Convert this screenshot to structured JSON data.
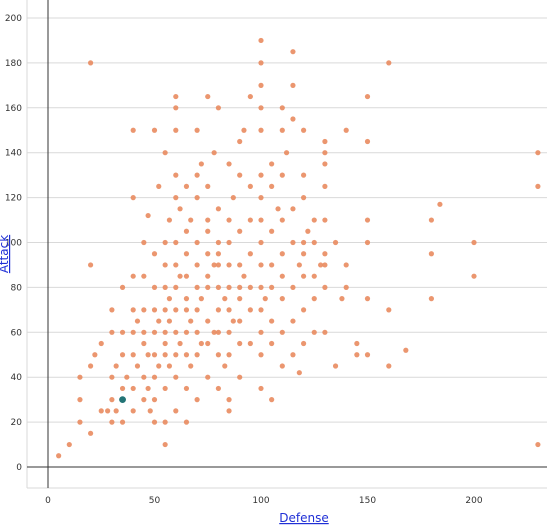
{
  "chart_data": {
    "type": "scatter",
    "title": "",
    "xlabel": "Defense",
    "ylabel": "Attack",
    "xlim": [
      -10,
      233
    ],
    "ylim": [
      -10,
      205
    ],
    "xticks": [
      0,
      50,
      100,
      150,
      200
    ],
    "yticks": [
      0,
      20,
      40,
      60,
      80,
      100,
      120,
      140,
      160,
      180,
      200
    ],
    "grid": "horizontal",
    "legend": "none",
    "colors": {
      "point": "#e98b5f",
      "highlight": "#237476",
      "axis_title": "#1f2fd6"
    },
    "highlight": {
      "x": 35,
      "y": 30
    },
    "series": [
      {
        "points": [
          [
            5,
            5
          ],
          [
            10,
            10
          ],
          [
            15,
            20
          ],
          [
            15,
            30
          ],
          [
            15,
            40
          ],
          [
            20,
            15
          ],
          [
            20,
            45
          ],
          [
            20,
            90
          ],
          [
            20,
            180
          ],
          [
            22,
            50
          ],
          [
            25,
            25
          ],
          [
            25,
            55
          ],
          [
            28,
            25
          ],
          [
            30,
            20
          ],
          [
            30,
            30
          ],
          [
            30,
            40
          ],
          [
            30,
            60
          ],
          [
            30,
            70
          ],
          [
            32,
            25
          ],
          [
            32,
            45
          ],
          [
            35,
            20
          ],
          [
            35,
            35
          ],
          [
            35,
            50
          ],
          [
            35,
            60
          ],
          [
            35,
            80
          ],
          [
            37,
            40
          ],
          [
            40,
            25
          ],
          [
            40,
            35
          ],
          [
            40,
            50
          ],
          [
            40,
            60
          ],
          [
            40,
            70
          ],
          [
            40,
            85
          ],
          [
            40,
            120
          ],
          [
            40,
            150
          ],
          [
            42,
            45
          ],
          [
            42,
            65
          ],
          [
            45,
            30
          ],
          [
            45,
            40
          ],
          [
            45,
            55
          ],
          [
            45,
            60
          ],
          [
            45,
            70
          ],
          [
            45,
            85
          ],
          [
            45,
            100
          ],
          [
            47,
            35
          ],
          [
            47,
            50
          ],
          [
            47,
            112
          ],
          [
            48,
            25
          ],
          [
            50,
            20
          ],
          [
            50,
            30
          ],
          [
            50,
            40
          ],
          [
            50,
            50
          ],
          [
            50,
            60
          ],
          [
            50,
            70
          ],
          [
            50,
            80
          ],
          [
            50,
            95
          ],
          [
            50,
            150
          ],
          [
            52,
            45
          ],
          [
            52,
            65
          ],
          [
            52,
            125
          ],
          [
            55,
            10
          ],
          [
            55,
            20
          ],
          [
            55,
            35
          ],
          [
            55,
            50
          ],
          [
            55,
            55
          ],
          [
            55,
            60
          ],
          [
            55,
            70
          ],
          [
            55,
            80
          ],
          [
            55,
            90
          ],
          [
            55,
            100
          ],
          [
            55,
            140
          ],
          [
            57,
            45
          ],
          [
            57,
            65
          ],
          [
            57,
            75
          ],
          [
            57,
            110
          ],
          [
            60,
            25
          ],
          [
            60,
            40
          ],
          [
            60,
            50
          ],
          [
            60,
            60
          ],
          [
            60,
            70
          ],
          [
            60,
            80
          ],
          [
            60,
            90
          ],
          [
            60,
            100
          ],
          [
            60,
            120
          ],
          [
            60,
            130
          ],
          [
            60,
            150
          ],
          [
            60,
            160
          ],
          [
            60,
            165
          ],
          [
            62,
            55
          ],
          [
            62,
            85
          ],
          [
            62,
            115
          ],
          [
            65,
            20
          ],
          [
            65,
            35
          ],
          [
            65,
            50
          ],
          [
            65,
            60
          ],
          [
            65,
            70
          ],
          [
            65,
            75
          ],
          [
            65,
            85
          ],
          [
            65,
            95
          ],
          [
            65,
            105
          ],
          [
            65,
            125
          ],
          [
            67,
            45
          ],
          [
            67,
            65
          ],
          [
            67,
            110
          ],
          [
            70,
            30
          ],
          [
            70,
            50
          ],
          [
            70,
            60
          ],
          [
            70,
            70
          ],
          [
            70,
            80
          ],
          [
            70,
            90
          ],
          [
            70,
            100
          ],
          [
            70,
            120
          ],
          [
            70,
            130
          ],
          [
            70,
            150
          ],
          [
            72,
            55
          ],
          [
            72,
            75
          ],
          [
            72,
            135
          ],
          [
            75,
            40
          ],
          [
            75,
            55
          ],
          [
            75,
            65
          ],
          [
            75,
            80
          ],
          [
            75,
            85
          ],
          [
            75,
            95
          ],
          [
            75,
            105
          ],
          [
            75,
            110
          ],
          [
            75,
            125
          ],
          [
            75,
            165
          ],
          [
            78,
            60
          ],
          [
            78,
            90
          ],
          [
            78,
            140
          ],
          [
            80,
            35
          ],
          [
            80,
            50
          ],
          [
            80,
            60
          ],
          [
            80,
            70
          ],
          [
            80,
            80
          ],
          [
            80,
            90
          ],
          [
            80,
            95
          ],
          [
            80,
            100
          ],
          [
            80,
            115
          ],
          [
            80,
            160
          ],
          [
            83,
            45
          ],
          [
            83,
            75
          ],
          [
            85,
            25
          ],
          [
            85,
            30
          ],
          [
            85,
            50
          ],
          [
            85,
            60
          ],
          [
            85,
            70
          ],
          [
            85,
            80
          ],
          [
            85,
            90
          ],
          [
            85,
            100
          ],
          [
            85,
            110
          ],
          [
            85,
            135
          ],
          [
            87,
            65
          ],
          [
            87,
            120
          ],
          [
            90,
            40
          ],
          [
            90,
            55
          ],
          [
            90,
            65
          ],
          [
            90,
            75
          ],
          [
            90,
            80
          ],
          [
            90,
            90
          ],
          [
            90,
            105
          ],
          [
            90,
            130
          ],
          [
            90,
            145
          ],
          [
            92,
            85
          ],
          [
            92,
            150
          ],
          [
            95,
            55
          ],
          [
            95,
            70
          ],
          [
            95,
            80
          ],
          [
            95,
            95
          ],
          [
            95,
            110
          ],
          [
            95,
            125
          ],
          [
            95,
            165
          ],
          [
            100,
            35
          ],
          [
            100,
            50
          ],
          [
            100,
            60
          ],
          [
            100,
            70
          ],
          [
            100,
            80
          ],
          [
            100,
            90
          ],
          [
            100,
            100
          ],
          [
            100,
            110
          ],
          [
            100,
            120
          ],
          [
            100,
            130
          ],
          [
            100,
            150
          ],
          [
            100,
            160
          ],
          [
            100,
            170
          ],
          [
            100,
            180
          ],
          [
            100,
            190
          ],
          [
            102,
            75
          ],
          [
            105,
            30
          ],
          [
            105,
            55
          ],
          [
            105,
            65
          ],
          [
            105,
            80
          ],
          [
            105,
            90
          ],
          [
            105,
            105
          ],
          [
            105,
            125
          ],
          [
            105,
            135
          ],
          [
            108,
            115
          ],
          [
            110,
            45
          ],
          [
            110,
            60
          ],
          [
            110,
            75
          ],
          [
            110,
            85
          ],
          [
            110,
            95
          ],
          [
            110,
            110
          ],
          [
            110,
            130
          ],
          [
            110,
            150
          ],
          [
            110,
            160
          ],
          [
            112,
            140
          ],
          [
            115,
            50
          ],
          [
            115,
            65
          ],
          [
            115,
            80
          ],
          [
            115,
            100
          ],
          [
            115,
            115
          ],
          [
            115,
            155
          ],
          [
            115,
            170
          ],
          [
            115,
            185
          ],
          [
            118,
            42
          ],
          [
            118,
            90
          ],
          [
            120,
            55
          ],
          [
            120,
            70
          ],
          [
            120,
            85
          ],
          [
            120,
            95
          ],
          [
            120,
            100
          ],
          [
            120,
            120
          ],
          [
            120,
            130
          ],
          [
            120,
            150
          ],
          [
            122,
            105
          ],
          [
            125,
            60
          ],
          [
            125,
            75
          ],
          [
            125,
            85
          ],
          [
            125,
            100
          ],
          [
            125,
            110
          ],
          [
            128,
            90
          ],
          [
            130,
            60
          ],
          [
            130,
            80
          ],
          [
            130,
            90
          ],
          [
            130,
            95
          ],
          [
            130,
            110
          ],
          [
            130,
            125
          ],
          [
            130,
            135
          ],
          [
            130,
            140
          ],
          [
            130,
            145
          ],
          [
            135,
            45
          ],
          [
            135,
            100
          ],
          [
            138,
            75
          ],
          [
            140,
            80
          ],
          [
            140,
            90
          ],
          [
            140,
            150
          ],
          [
            145,
            50
          ],
          [
            145,
            55
          ],
          [
            150,
            50
          ],
          [
            150,
            75
          ],
          [
            150,
            100
          ],
          [
            150,
            110
          ],
          [
            150,
            145
          ],
          [
            150,
            165
          ],
          [
            160,
            45
          ],
          [
            160,
            70
          ],
          [
            160,
            180
          ],
          [
            168,
            52
          ],
          [
            180,
            75
          ],
          [
            180,
            95
          ],
          [
            180,
            110
          ],
          [
            184,
            117
          ],
          [
            200,
            85
          ],
          [
            200,
            100
          ],
          [
            230,
            10
          ],
          [
            230,
            125
          ],
          [
            230,
            140
          ]
        ]
      }
    ]
  }
}
